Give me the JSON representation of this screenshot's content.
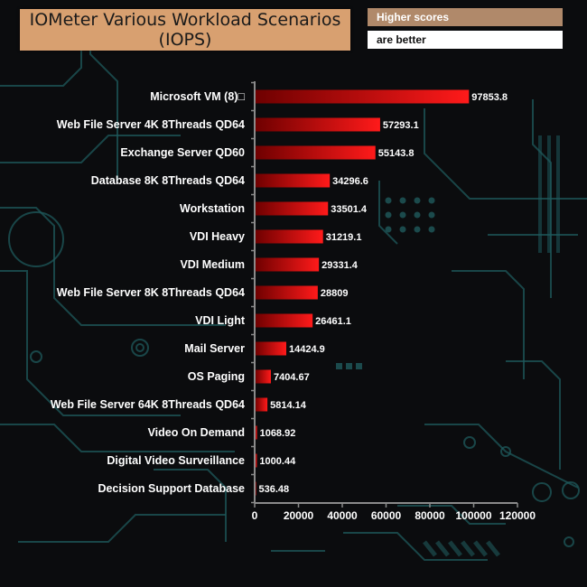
{
  "colors": {
    "background": "#0b0c0e",
    "circuit": "#1f5a5c",
    "bar_dark": "#7a0000",
    "bar_light": "#ff1a1a",
    "axis": "#8a8a8a"
  },
  "chart_data": {
    "type": "bar",
    "orientation": "horizontal",
    "title": "IOMeter Various Workload Scenarios (IOPS)",
    "title_line1": "IOMeter Various Workload Scenarios",
    "title_line2": "(IOPS)",
    "note_line1": "Higher scores",
    "note_line2": "are better",
    "xlim": [
      0,
      120000
    ],
    "xticks": [
      0,
      20000,
      40000,
      60000,
      80000,
      100000,
      120000
    ],
    "xtick_labels": [
      "0",
      "20000",
      "40000",
      "60000",
      "80000",
      "100000",
      "120000"
    ],
    "grid": false,
    "categories": [
      "Microsoft VM (8)□",
      "Web File Server 4K 8Threads QD64",
      "Exchange Server QD60",
      "Database 8K 8Threads QD64",
      "Workstation",
      "VDI Heavy",
      "VDI Medium",
      "Web File Server 8K 8Threads QD64",
      "VDI Light",
      "Mail Server",
      "OS Paging",
      "Web File Server 64K 8Threads QD64",
      "Video On Demand",
      "Digital Video Surveillance",
      "Decision Support Database"
    ],
    "values": [
      97853.8,
      57293.1,
      55143.8,
      34296.6,
      33501.4,
      31219.1,
      29331.4,
      28809,
      26461.1,
      14424.9,
      7404.67,
      5814.14,
      1068.92,
      1000.44,
      536.48
    ],
    "value_labels": [
      "97853.8",
      "57293.1",
      "55143.8",
      "34296.6",
      "33501.4",
      "31219.1",
      "29331.4",
      "28809",
      "26461.1",
      "14424.9",
      "7404.67",
      "5814.14",
      "1068.92",
      "1000.44",
      "536.48"
    ]
  }
}
